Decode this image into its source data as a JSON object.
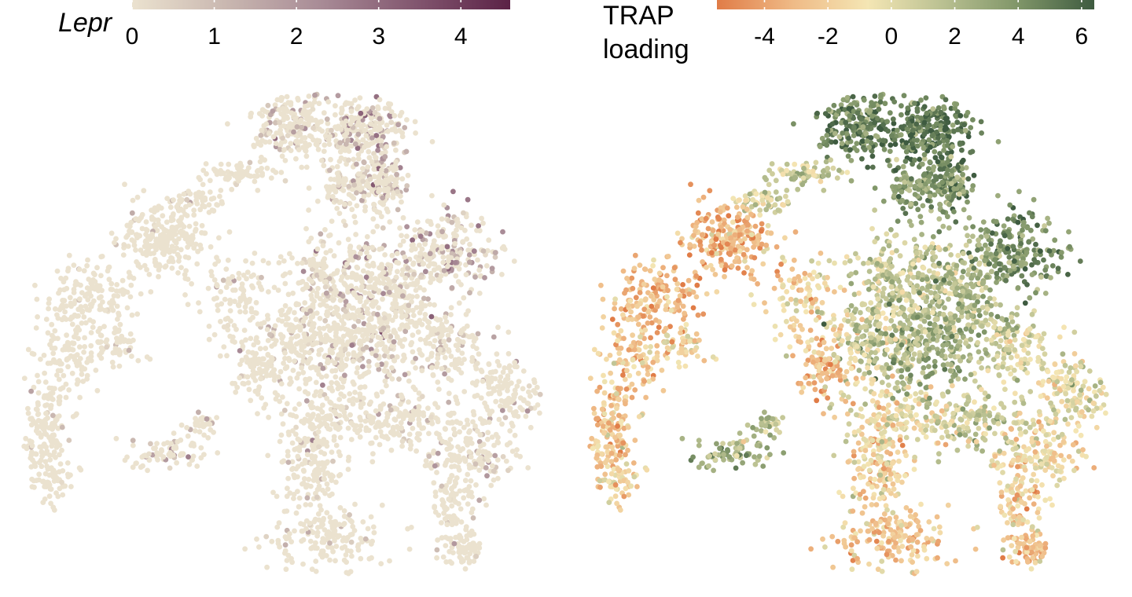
{
  "chart_data": [
    {
      "type": "scatter",
      "subtype": "umap-feature-plot",
      "legend": {
        "title": "Lepr",
        "title_style": "italic",
        "placement": "top",
        "ticks": [
          0,
          1,
          2,
          3,
          4
        ],
        "tick_labels": [
          "0",
          "1",
          "2",
          "3",
          "4"
        ],
        "range": [
          0,
          4.6
        ],
        "colors": [
          "#ebe2cf",
          "#c9b7b0",
          "#a88b96",
          "#82566f",
          "#5b2246"
        ]
      },
      "axes": "none",
      "grid": false,
      "color_value_summary": {
        "min": 0,
        "max": 4.6,
        "note": "most points near 0; higher values concentrated in the upper-right clusters"
      },
      "point_count_approx": 5000
    },
    {
      "type": "scatter",
      "subtype": "umap-feature-plot",
      "legend": {
        "title_lines": [
          "TRAP",
          "loading"
        ],
        "placement": "top",
        "ticks": [
          -4,
          -2,
          0,
          2,
          4,
          6
        ],
        "tick_labels": [
          "-4",
          "-2",
          "0",
          "2",
          "4",
          "6"
        ],
        "range": [
          -5.5,
          6.4
        ],
        "colors": [
          "#e07c47",
          "#efba86",
          "#f4e6b4",
          "#b9c091",
          "#7f9568",
          "#3e5b40"
        ]
      },
      "axes": "none",
      "grid": false,
      "color_value_summary": {
        "min": -5.5,
        "max": 6.4,
        "note": "positive loadings in the upper-right clusters, negative loadings in the left and lower clusters"
      },
      "point_count_approx": 5000
    }
  ]
}
